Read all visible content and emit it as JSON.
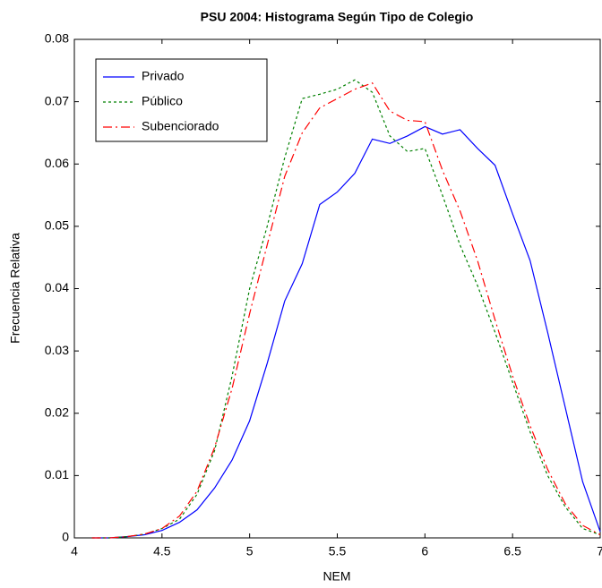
{
  "chart_data": {
    "type": "line",
    "title": "PSU 2004: Histograma Según Tipo de Colegio",
    "xlabel": "NEM",
    "ylabel": "Frecuencia Relativa",
    "x": [
      4.1,
      4.2,
      4.3,
      4.4,
      4.5,
      4.6,
      4.7,
      4.8,
      4.9,
      5.0,
      5.1,
      5.2,
      5.3,
      5.4,
      5.5,
      5.6,
      5.7,
      5.8,
      5.9,
      6.0,
      6.1,
      6.2,
      6.3,
      6.4,
      6.5,
      6.6,
      6.7,
      6.8,
      6.9,
      7.0
    ],
    "series": [
      {
        "name": "Privado",
        "color": "#0000ff",
        "style": "solid",
        "values": [
          0,
          0,
          0.0002,
          0.0005,
          0.0012,
          0.0025,
          0.0045,
          0.008,
          0.0125,
          0.0188,
          0.028,
          0.038,
          0.044,
          0.0535,
          0.0555,
          0.0585,
          0.064,
          0.0633,
          0.0645,
          0.066,
          0.0648,
          0.0655,
          0.0625,
          0.0598,
          0.052,
          0.0445,
          0.033,
          0.021,
          0.009,
          0.001
        ]
      },
      {
        "name": "Público",
        "color": "#008000",
        "style": "dotted",
        "values": [
          0,
          0,
          0.0002,
          0.0006,
          0.0015,
          0.003,
          0.007,
          0.014,
          0.026,
          0.04,
          0.05,
          0.061,
          0.0705,
          0.0712,
          0.072,
          0.0735,
          0.0715,
          0.0645,
          0.062,
          0.0625,
          0.055,
          0.047,
          0.0405,
          0.033,
          0.025,
          0.017,
          0.01,
          0.005,
          0.0015,
          0.0005
        ]
      },
      {
        "name": "Subenciorado",
        "color": "#ff0000",
        "style": "dashdot",
        "values": [
          0,
          0,
          0.0002,
          0.0006,
          0.0015,
          0.0035,
          0.0075,
          0.0145,
          0.024,
          0.036,
          0.047,
          0.058,
          0.065,
          0.069,
          0.0705,
          0.072,
          0.073,
          0.0685,
          0.067,
          0.0668,
          0.059,
          0.0525,
          0.0445,
          0.035,
          0.026,
          0.018,
          0.011,
          0.0055,
          0.002,
          0.0005
        ]
      }
    ],
    "xlim": [
      4,
      7
    ],
    "xticks": [
      4,
      4.5,
      5,
      5.5,
      6,
      6.5,
      7
    ],
    "ylim": [
      0,
      0.08
    ],
    "yticks": [
      0,
      0.01,
      0.02,
      0.03,
      0.04,
      0.05,
      0.06,
      0.07,
      0.08
    ],
    "grid": false,
    "legend": "top-left"
  }
}
